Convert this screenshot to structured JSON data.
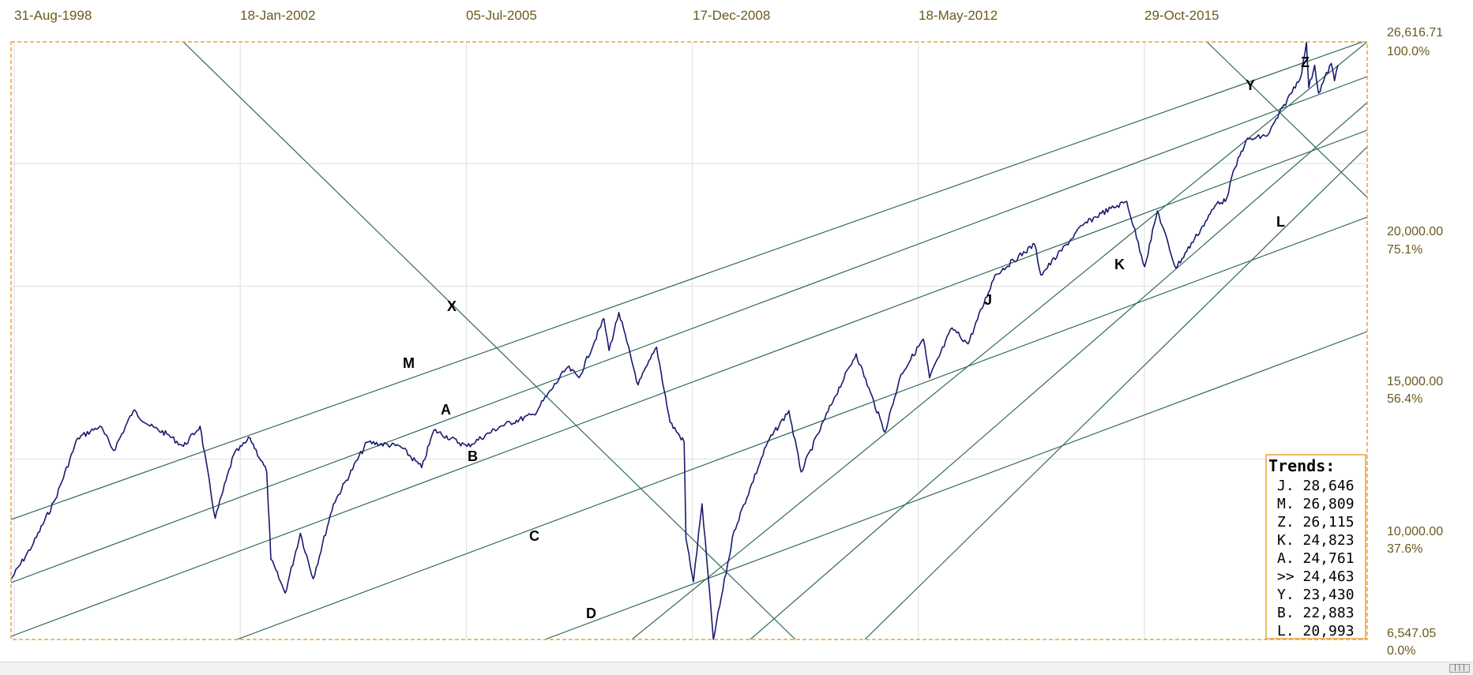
{
  "chart_data": {
    "type": "line",
    "x_axis": {
      "tick_labels": [
        "31-Aug-1998",
        "18-Jan-2002",
        "05-Jul-2005",
        "17-Dec-2008",
        "18-May-2012",
        "29-Oct-2015"
      ],
      "range": [
        "1998-08-31",
        "2019-06-30"
      ]
    },
    "y_axis": {
      "scale": "log",
      "range": [
        6547.05,
        26616.71
      ],
      "tick_labels": [
        {
          "value": 26616.71,
          "price": "26,616.71",
          "pct": "100.0%"
        },
        {
          "value": 20000,
          "price": "20,000.00",
          "pct": "75.1%"
        },
        {
          "value": 15000,
          "price": "15,000.00",
          "pct": "56.4%"
        },
        {
          "value": 10000,
          "price": "10,000.00",
          "pct": "37.6%"
        },
        {
          "value": 6547.05,
          "price": "6,547.05",
          "pct": "0.0%"
        }
      ]
    },
    "grid": true,
    "series": [
      {
        "color": "#1a1a6e",
        "points": [
          [
            "1998-08-31",
            7540
          ],
          [
            "1998-12-31",
            8200
          ],
          [
            "1999-04-30",
            9100
          ],
          [
            "1999-08-31",
            10500
          ],
          [
            "1999-12-31",
            10800
          ],
          [
            "2000-03-15",
            10200
          ],
          [
            "2000-06-30",
            11200
          ],
          [
            "2000-09-30",
            10800
          ],
          [
            "2000-12-31",
            10600
          ],
          [
            "2001-03-31",
            10300
          ],
          [
            "2001-06-30",
            10800
          ],
          [
            "2001-09-21",
            8700
          ],
          [
            "2001-12-31",
            10100
          ],
          [
            "2002-03-31",
            10500
          ],
          [
            "2002-06-30",
            9700
          ],
          [
            "2002-07-23",
            7900
          ],
          [
            "2002-10-09",
            7300
          ],
          [
            "2002-12-31",
            8400
          ],
          [
            "2003-03-11",
            7550
          ],
          [
            "2003-06-30",
            9000
          ],
          [
            "2003-12-31",
            10400
          ],
          [
            "2004-06-30",
            10300
          ],
          [
            "2004-10-25",
            9800
          ],
          [
            "2004-12-31",
            10700
          ],
          [
            "2005-06-30",
            10300
          ],
          [
            "2005-12-31",
            10800
          ],
          [
            "2006-06-30",
            11100
          ],
          [
            "2006-12-31",
            12400
          ],
          [
            "2007-03-05",
            12100
          ],
          [
            "2007-07-19",
            13900
          ],
          [
            "2007-08-16",
            12900
          ],
          [
            "2007-10-09",
            14100
          ],
          [
            "2008-01-22",
            11900
          ],
          [
            "2008-05-02",
            13000
          ],
          [
            "2008-07-15",
            10900
          ],
          [
            "2008-09-30",
            10400
          ],
          [
            "2008-10-10",
            8300
          ],
          [
            "2008-11-20",
            7500
          ],
          [
            "2009-01-06",
            9000
          ],
          [
            "2009-03-09",
            6550
          ],
          [
            "2009-06-30",
            8450
          ],
          [
            "2009-12-31",
            10400
          ],
          [
            "2010-04-26",
            11200
          ],
          [
            "2010-07-02",
            9700
          ],
          [
            "2010-12-31",
            11550
          ],
          [
            "2011-04-29",
            12800
          ],
          [
            "2011-10-03",
            10650
          ],
          [
            "2011-12-31",
            12200
          ],
          [
            "2012-05-01",
            13250
          ],
          [
            "2012-06-04",
            12100
          ],
          [
            "2012-10-05",
            13600
          ],
          [
            "2012-12-31",
            13100
          ],
          [
            "2013-05-28",
            15400
          ],
          [
            "2013-12-31",
            16550
          ],
          [
            "2014-02-03",
            15400
          ],
          [
            "2014-09-19",
            17300
          ],
          [
            "2014-12-31",
            17800
          ],
          [
            "2015-05-19",
            18300
          ],
          [
            "2015-08-25",
            15700
          ],
          [
            "2015-11-03",
            17900
          ],
          [
            "2016-02-11",
            15650
          ],
          [
            "2016-06-27",
            17150
          ],
          [
            "2016-09-30",
            18300
          ],
          [
            "2016-11-08",
            18300
          ],
          [
            "2016-12-31",
            19800
          ],
          [
            "2017-03-01",
            21100
          ],
          [
            "2017-06-30",
            21400
          ],
          [
            "2017-12-31",
            24700
          ],
          [
            "2018-01-26",
            26600
          ],
          [
            "2018-02-08",
            23900
          ],
          [
            "2018-03-12",
            25200
          ],
          [
            "2018-04-02",
            23600
          ],
          [
            "2018-06-11",
            25300
          ],
          [
            "2018-06-29",
            24300
          ],
          [
            "2018-07-18",
            25200
          ]
        ]
      }
    ],
    "trendlines": [
      {
        "label": "J",
        "value": "28,646"
      },
      {
        "label": "M",
        "value": "26,809"
      },
      {
        "label": "Z",
        "value": "26,115"
      },
      {
        "label": "K",
        "value": "24,823"
      },
      {
        "label": "A",
        "value": "24,761"
      },
      {
        "label": ">>",
        "value": "24,463"
      },
      {
        "label": "Y",
        "value": "23,430"
      },
      {
        "label": "B",
        "value": "22,883"
      },
      {
        "label": "L",
        "value": "20,993"
      }
    ],
    "chart_labels": [
      "M",
      "A",
      "B",
      "C",
      "D",
      "X",
      "J",
      "K",
      "L",
      "Y",
      "Z"
    ],
    "legend": {
      "title": "Trends:",
      "placement": "bottom-right"
    }
  },
  "colors": {
    "frame": "#e8a33a",
    "trendline": "#2f6b58",
    "series": "#1a1a6e",
    "text": "#6b5a1e",
    "grid": "#dedede"
  }
}
